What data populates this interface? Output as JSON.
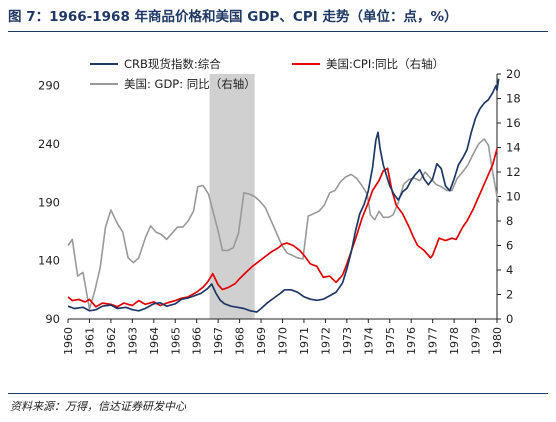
{
  "header": {
    "title": "图 7：1966-1968 年商品价格和美国 GDP、CPI 走势（单位：点，%）"
  },
  "footer": {
    "source": "资料来源：万得，信达证券研发中心"
  },
  "chart_data": {
    "type": "line",
    "title": "图 7：1966-1968 年商品价格和美国 GDP、CPI 走势（单位：点，%）",
    "x_range": [
      1960,
      1980
    ],
    "x_ticks": [
      "1960",
      "1961",
      "1962",
      "1963",
      "1964",
      "1965",
      "1966",
      "1967",
      "1968",
      "1969",
      "1970",
      "1971",
      "1972",
      "1973",
      "1974",
      "1975",
      "1976",
      "1977",
      "1978",
      "1979",
      "1980"
    ],
    "y_left": {
      "range": [
        90,
        300
      ],
      "ticks": [
        "90",
        "140",
        "190",
        "240",
        "290"
      ]
    },
    "y_right": {
      "range": [
        0,
        20
      ],
      "ticks": [
        "0",
        "2",
        "4",
        "6",
        "8",
        "10",
        "12",
        "14",
        "16",
        "18",
        "20"
      ]
    },
    "shaded_region": {
      "from": 1966.6,
      "to": 1968.7,
      "color": "#d0d0d0"
    },
    "legend": {
      "placement": "top-left",
      "columns": 2
    },
    "series": [
      {
        "name": "CRB现货指数:综合",
        "axis": "left",
        "color": "#1f3864",
        "points": [
          [
            1960.0,
            101
          ],
          [
            1960.3,
            99
          ],
          [
            1960.7,
            100
          ],
          [
            1961.0,
            97
          ],
          [
            1961.3,
            98
          ],
          [
            1961.6,
            101
          ],
          [
            1962.0,
            102
          ],
          [
            1962.3,
            99
          ],
          [
            1962.7,
            100
          ],
          [
            1963.0,
            98
          ],
          [
            1963.3,
            97
          ],
          [
            1963.6,
            99
          ],
          [
            1964.0,
            103
          ],
          [
            1964.3,
            104
          ],
          [
            1964.6,
            101
          ],
          [
            1965.0,
            103
          ],
          [
            1965.3,
            107
          ],
          [
            1965.6,
            108
          ],
          [
            1965.9,
            110
          ],
          [
            1966.2,
            112
          ],
          [
            1966.5,
            116
          ],
          [
            1966.7,
            120
          ],
          [
            1966.9,
            112
          ],
          [
            1967.1,
            106
          ],
          [
            1967.3,
            103
          ],
          [
            1967.6,
            101
          ],
          [
            1967.9,
            100
          ],
          [
            1968.2,
            99
          ],
          [
            1968.5,
            97
          ],
          [
            1968.8,
            96
          ],
          [
            1969.0,
            99
          ],
          [
            1969.3,
            104
          ],
          [
            1969.6,
            108
          ],
          [
            1969.9,
            112
          ],
          [
            1970.1,
            115
          ],
          [
            1970.4,
            115
          ],
          [
            1970.7,
            113
          ],
          [
            1971.0,
            109
          ],
          [
            1971.3,
            107
          ],
          [
            1971.6,
            106
          ],
          [
            1971.9,
            107
          ],
          [
            1972.2,
            110
          ],
          [
            1972.5,
            113
          ],
          [
            1972.8,
            121
          ],
          [
            1973.0,
            133
          ],
          [
            1973.2,
            147
          ],
          [
            1973.4,
            165
          ],
          [
            1973.6,
            180
          ],
          [
            1973.8,
            188
          ],
          [
            1974.0,
            200
          ],
          [
            1974.2,
            220
          ],
          [
            1974.35,
            243
          ],
          [
            1974.45,
            250
          ],
          [
            1974.55,
            236
          ],
          [
            1974.7,
            222
          ],
          [
            1974.85,
            213
          ],
          [
            1975.0,
            204
          ],
          [
            1975.2,
            197
          ],
          [
            1975.4,
            192
          ],
          [
            1975.6,
            199
          ],
          [
            1975.8,
            202
          ],
          [
            1976.0,
            209
          ],
          [
            1976.2,
            214
          ],
          [
            1976.4,
            218
          ],
          [
            1976.6,
            210
          ],
          [
            1976.8,
            205
          ],
          [
            1977.0,
            210
          ],
          [
            1977.2,
            223
          ],
          [
            1977.4,
            219
          ],
          [
            1977.6,
            204
          ],
          [
            1977.8,
            200
          ],
          [
            1978.0,
            210
          ],
          [
            1978.2,
            222
          ],
          [
            1978.4,
            228
          ],
          [
            1978.6,
            235
          ],
          [
            1978.8,
            250
          ],
          [
            1979.0,
            262
          ],
          [
            1979.2,
            270
          ],
          [
            1979.4,
            275
          ],
          [
            1979.6,
            278
          ],
          [
            1979.8,
            284
          ],
          [
            1979.95,
            290
          ],
          [
            1980.0,
            286
          ],
          [
            1980.08,
            296
          ]
        ]
      },
      {
        "name": "美国:CPI:同比（右轴）",
        "axis": "right",
        "color": "#e00000",
        "points": [
          [
            1960.0,
            1.8
          ],
          [
            1960.2,
            1.5
          ],
          [
            1960.5,
            1.6
          ],
          [
            1960.8,
            1.4
          ],
          [
            1961.0,
            1.6
          ],
          [
            1961.3,
            1.0
          ],
          [
            1961.6,
            1.3
          ],
          [
            1962.0,
            1.2
          ],
          [
            1962.3,
            1.0
          ],
          [
            1962.6,
            1.3
          ],
          [
            1963.0,
            1.1
          ],
          [
            1963.3,
            1.5
          ],
          [
            1963.6,
            1.2
          ],
          [
            1964.0,
            1.4
          ],
          [
            1964.3,
            1.1
          ],
          [
            1964.6,
            1.3
          ],
          [
            1965.0,
            1.5
          ],
          [
            1965.3,
            1.7
          ],
          [
            1965.6,
            1.8
          ],
          [
            1966.0,
            2.2
          ],
          [
            1966.3,
            2.6
          ],
          [
            1966.5,
            3.0
          ],
          [
            1966.75,
            3.7
          ],
          [
            1967.0,
            2.8
          ],
          [
            1967.2,
            2.4
          ],
          [
            1967.5,
            2.6
          ],
          [
            1967.8,
            2.9
          ],
          [
            1968.0,
            3.3
          ],
          [
            1968.3,
            3.8
          ],
          [
            1968.6,
            4.3
          ],
          [
            1968.9,
            4.7
          ],
          [
            1969.2,
            5.1
          ],
          [
            1969.5,
            5.5
          ],
          [
            1969.8,
            5.8
          ],
          [
            1970.0,
            6.1
          ],
          [
            1970.2,
            6.2
          ],
          [
            1970.5,
            6.0
          ],
          [
            1970.8,
            5.6
          ],
          [
            1971.0,
            5.2
          ],
          [
            1971.3,
            4.5
          ],
          [
            1971.6,
            4.3
          ],
          [
            1971.9,
            3.4
          ],
          [
            1972.2,
            3.5
          ],
          [
            1972.5,
            3.0
          ],
          [
            1972.8,
            3.6
          ],
          [
            1973.0,
            4.5
          ],
          [
            1973.2,
            5.5
          ],
          [
            1973.4,
            6.5
          ],
          [
            1973.7,
            8.2
          ],
          [
            1974.0,
            9.5
          ],
          [
            1974.2,
            10.5
          ],
          [
            1974.5,
            11.3
          ],
          [
            1974.7,
            12.1
          ],
          [
            1974.9,
            12.3
          ],
          [
            1975.1,
            10.5
          ],
          [
            1975.3,
            9.3
          ],
          [
            1975.6,
            8.6
          ],
          [
            1975.9,
            7.5
          ],
          [
            1976.1,
            6.7
          ],
          [
            1976.3,
            6.0
          ],
          [
            1976.6,
            5.6
          ],
          [
            1976.9,
            5.0
          ],
          [
            1977.0,
            5.2
          ],
          [
            1977.3,
            6.6
          ],
          [
            1977.6,
            6.4
          ],
          [
            1977.9,
            6.6
          ],
          [
            1978.1,
            6.5
          ],
          [
            1978.4,
            7.5
          ],
          [
            1978.6,
            8.0
          ],
          [
            1978.9,
            9.0
          ],
          [
            1979.1,
            9.8
          ],
          [
            1979.3,
            10.6
          ],
          [
            1979.6,
            11.8
          ],
          [
            1979.8,
            12.6
          ],
          [
            1980.0,
            13.9
          ]
        ]
      },
      {
        "name": "美国: GDP: 同比（右轴）",
        "axis": "right",
        "color": "#999999",
        "points": [
          [
            1960.0,
            6.0
          ],
          [
            1960.2,
            6.5
          ],
          [
            1960.45,
            3.5
          ],
          [
            1960.7,
            3.8
          ],
          [
            1961.0,
            0.8
          ],
          [
            1961.25,
            2.3
          ],
          [
            1961.5,
            4.2
          ],
          [
            1961.75,
            7.5
          ],
          [
            1962.0,
            8.9
          ],
          [
            1962.3,
            7.8
          ],
          [
            1962.55,
            7.1
          ],
          [
            1962.8,
            5.0
          ],
          [
            1963.05,
            4.6
          ],
          [
            1963.3,
            5.0
          ],
          [
            1963.6,
            6.6
          ],
          [
            1963.85,
            7.6
          ],
          [
            1964.1,
            7.1
          ],
          [
            1964.35,
            6.9
          ],
          [
            1964.6,
            6.5
          ],
          [
            1964.85,
            7.0
          ],
          [
            1965.1,
            7.5
          ],
          [
            1965.35,
            7.5
          ],
          [
            1965.6,
            8.0
          ],
          [
            1965.85,
            8.8
          ],
          [
            1966.05,
            10.8
          ],
          [
            1966.3,
            10.9
          ],
          [
            1966.55,
            10.2
          ],
          [
            1966.8,
            8.5
          ],
          [
            1967.0,
            7.2
          ],
          [
            1967.2,
            5.6
          ],
          [
            1967.45,
            5.6
          ],
          [
            1967.7,
            5.8
          ],
          [
            1967.95,
            7.0
          ],
          [
            1968.2,
            10.3
          ],
          [
            1968.45,
            10.2
          ],
          [
            1968.7,
            10.0
          ],
          [
            1968.95,
            9.6
          ],
          [
            1969.2,
            9.1
          ],
          [
            1969.45,
            8.1
          ],
          [
            1969.7,
            7.1
          ],
          [
            1969.95,
            6.1
          ],
          [
            1970.2,
            5.4
          ],
          [
            1970.45,
            5.2
          ],
          [
            1970.7,
            5.0
          ],
          [
            1970.95,
            4.9
          ],
          [
            1971.2,
            8.4
          ],
          [
            1971.45,
            8.6
          ],
          [
            1971.7,
            8.8
          ],
          [
            1971.95,
            9.3
          ],
          [
            1972.2,
            10.3
          ],
          [
            1972.45,
            10.5
          ],
          [
            1972.7,
            11.2
          ],
          [
            1972.95,
            11.6
          ],
          [
            1973.2,
            11.8
          ],
          [
            1973.45,
            11.5
          ],
          [
            1973.7,
            10.9
          ],
          [
            1973.95,
            10.2
          ],
          [
            1974.1,
            8.5
          ],
          [
            1974.3,
            8.1
          ],
          [
            1974.5,
            8.8
          ],
          [
            1974.7,
            8.3
          ],
          [
            1974.95,
            8.3
          ],
          [
            1975.15,
            8.5
          ],
          [
            1975.4,
            9.5
          ],
          [
            1975.65,
            11.0
          ],
          [
            1975.9,
            11.4
          ],
          [
            1976.15,
            11.5
          ],
          [
            1976.4,
            11.3
          ],
          [
            1976.65,
            12.0
          ],
          [
            1976.9,
            11.5
          ],
          [
            1977.15,
            11.0
          ],
          [
            1977.4,
            10.8
          ],
          [
            1977.65,
            10.5
          ],
          [
            1977.9,
            10.5
          ],
          [
            1978.15,
            11.5
          ],
          [
            1978.4,
            12.0
          ],
          [
            1978.65,
            12.6
          ],
          [
            1978.9,
            13.5
          ],
          [
            1979.15,
            14.3
          ],
          [
            1979.4,
            14.7
          ],
          [
            1979.6,
            14.2
          ],
          [
            1979.8,
            12.0
          ],
          [
            1980.0,
            10.0
          ],
          [
            1980.1,
            9.5
          ]
        ]
      }
    ]
  }
}
